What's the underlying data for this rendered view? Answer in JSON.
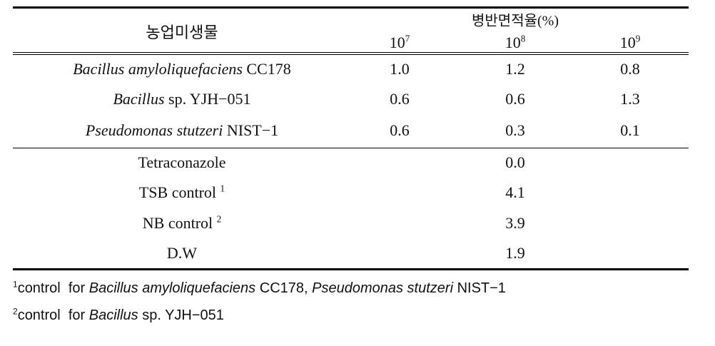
{
  "table": {
    "header": {
      "organism": "농업미생물",
      "measure": "병반면적율(%)",
      "doses": [
        {
          "base": "10",
          "exp": "7"
        },
        {
          "base": "10",
          "exp": "8"
        },
        {
          "base": "10",
          "exp": "9"
        }
      ]
    },
    "strains": [
      {
        "genus": "Bacillus amyloliquefaciens",
        "strain": "CC178",
        "values": [
          "1.0",
          "1.2",
          "0.8"
        ]
      },
      {
        "genus": "Bacillus",
        "strain": "sp. YJH−051",
        "values": [
          "0.6",
          "0.6",
          "1.3"
        ]
      },
      {
        "genus": "Pseudomonas stutzeri",
        "strain": "NIST−1",
        "values": [
          "0.6",
          "0.3",
          "0.1"
        ]
      }
    ],
    "controls": [
      {
        "label": "Tetraconazole",
        "value": "0.0"
      },
      {
        "label": "TSB control",
        "note": "1",
        "value": "4.1"
      },
      {
        "label": "NB control",
        "note": "2",
        "value": "3.9"
      },
      {
        "label": "D.W",
        "value": "1.9"
      }
    ]
  },
  "footnotes": [
    {
      "mark": "1",
      "parts": [
        {
          "text": "control  for "
        },
        {
          "text": "Bacillus amyloliquefaciens",
          "italic": true
        },
        {
          "text": " CC178, "
        },
        {
          "text": "Pseudomonas stutzeri",
          "italic": true
        },
        {
          "text": " NIST−1"
        }
      ]
    },
    {
      "mark": "2",
      "parts": [
        {
          "text": "control  for "
        },
        {
          "text": "Bacillus",
          "italic": true
        },
        {
          "text": " sp. YJH−051"
        }
      ]
    }
  ]
}
